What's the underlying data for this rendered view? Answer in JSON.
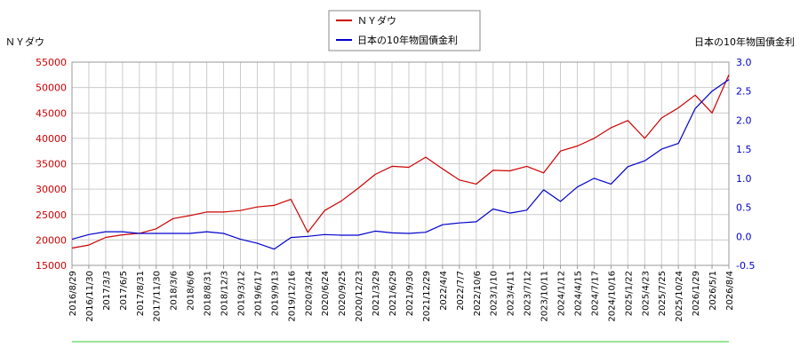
{
  "chart_data": {
    "type": "line",
    "left_axis_title": "ＮＹダウ",
    "right_axis_title": "日本の10年物国債金利",
    "legend_position": "top-center",
    "grid": true,
    "colors": {
      "left_axis": "#cc0000",
      "right_axis": "#0000cc",
      "grid": "#cccccc",
      "baseline": "#33cc33"
    },
    "y_left": {
      "min": 15000,
      "max": 55000,
      "ticks": [
        "15000",
        "20000",
        "25000",
        "30000",
        "35000",
        "40000",
        "45000",
        "50000",
        "55000"
      ]
    },
    "y_right": {
      "min": -0.5,
      "max": 3.0,
      "ticks": [
        "-0.5",
        "0.0",
        "0.5",
        "1.0",
        "1.5",
        "2.0",
        "2.5",
        "3.0"
      ]
    },
    "x_ticks": [
      "2016/8/29",
      "2016/11/30",
      "2017/3/3",
      "2017/6/5",
      "2017/8/31",
      "2017/11/30",
      "2018/3/6",
      "2018/6/6",
      "2018/8/31",
      "2018/12/3",
      "2019/3/12",
      "2019/6/17",
      "2019/9/13",
      "2019/12/16",
      "2020/3/24",
      "2020/6/24",
      "2020/9/25",
      "2020/12/23",
      "2021/3/29",
      "2021/6/29",
      "2021/9/30",
      "2021/12/29",
      "2022/4/4",
      "2022/7/7",
      "2022/10/6",
      "2023/1/10",
      "2023/4/11",
      "2023/7/12",
      "2023/10/11",
      "2024/1/12",
      "2024/4/15",
      "2024/7/17",
      "2024/10/16",
      "2025/1/22",
      "2025/4/23",
      "2025/7/25",
      "2025/10/24",
      "2026/1/29",
      "2026/5/1",
      "2026/8/4"
    ],
    "series": [
      {
        "name": "ＮＹダウ",
        "axis": "left",
        "color": "#cc0000",
        "values": [
          18400,
          19000,
          20500,
          21000,
          21300,
          22200,
          24200,
          24800,
          25500,
          25500,
          25800,
          26500,
          26800,
          28000,
          21500,
          25800,
          27700,
          30200,
          32900,
          34500,
          34300,
          36300,
          34000,
          31800,
          31000,
          33700,
          33600,
          34500,
          33200,
          37500,
          38500,
          40000,
          42100,
          43500,
          40000,
          44000,
          46000,
          48500,
          45000,
          52500
        ]
      },
      {
        "name": "日本の10年物国債金利",
        "axis": "right",
        "color": "#0000cc",
        "values": [
          -0.05,
          0.03,
          0.08,
          0.08,
          0.05,
          0.05,
          0.05,
          0.05,
          0.08,
          0.05,
          -0.05,
          -0.12,
          -0.22,
          -0.02,
          0.0,
          0.03,
          0.02,
          0.02,
          0.09,
          0.06,
          0.05,
          0.07,
          0.2,
          0.23,
          0.25,
          0.47,
          0.4,
          0.45,
          0.8,
          0.6,
          0.85,
          1.0,
          0.9,
          1.2,
          1.3,
          1.5,
          1.6,
          2.2,
          2.5,
          2.7
        ]
      }
    ]
  }
}
